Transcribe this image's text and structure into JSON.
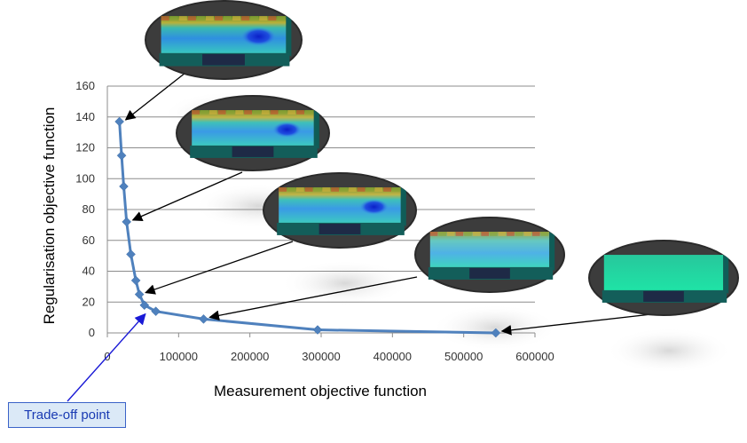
{
  "chart_data": {
    "type": "line",
    "title": "",
    "xlabel": "Measurement objective function",
    "ylabel": "Regularisation objective function",
    "xlim": [
      0,
      600000
    ],
    "ylim": [
      0,
      160
    ],
    "x_ticks": [
      0,
      100000,
      200000,
      300000,
      400000,
      500000,
      600000
    ],
    "y_ticks": [
      0,
      20,
      40,
      60,
      80,
      100,
      120,
      140,
      160
    ],
    "grid": "horizontal",
    "legend": "none",
    "series": [
      {
        "color": "#4f81bd",
        "marker": "diamond",
        "points": [
          {
            "x": 17000,
            "y": 137
          },
          {
            "x": 20000,
            "y": 115
          },
          {
            "x": 23000,
            "y": 95
          },
          {
            "x": 27000,
            "y": 72
          },
          {
            "x": 33000,
            "y": 51
          },
          {
            "x": 40000,
            "y": 34
          },
          {
            "x": 45000,
            "y": 25
          },
          {
            "x": 52000,
            "y": 18
          },
          {
            "x": 68000,
            "y": 14
          },
          {
            "x": 135000,
            "y": 9
          },
          {
            "x": 295000,
            "y": 2
          },
          {
            "x": 545000,
            "y": 0
          }
        ]
      }
    ],
    "annotations": {
      "trade_off_label": "Trade-off point",
      "trade_off_point_index": 7,
      "model_images": [
        {
          "point_index": 0,
          "anomaly": "strong"
        },
        {
          "point_index": 3,
          "anomaly": "medium"
        },
        {
          "point_index": 6,
          "anomaly": "medium"
        },
        {
          "point_index": 9,
          "anomaly": "weak"
        },
        {
          "point_index": 11,
          "anomaly": "none"
        }
      ]
    }
  }
}
